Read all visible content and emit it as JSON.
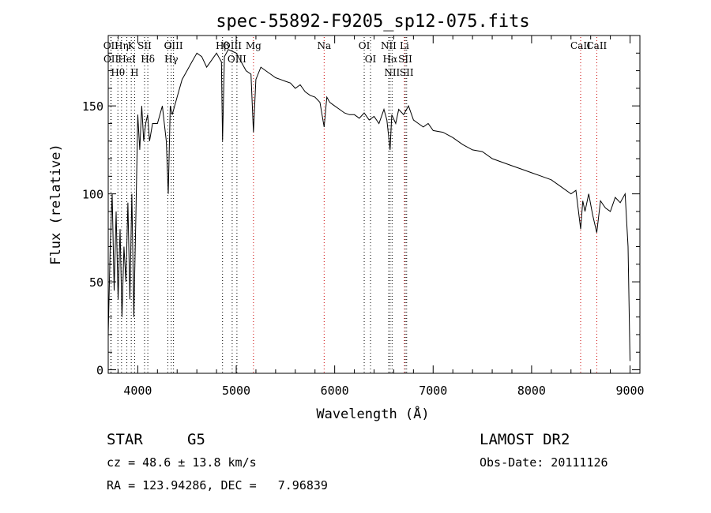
{
  "chart_data": {
    "type": "line",
    "title": "spec-55892-F9205_sp12-075.fits",
    "xlabel": "Wavelength (Å)",
    "ylabel": "Flux (relative)",
    "xlim": [
      3700,
      9100
    ],
    "ylim": [
      -2,
      190
    ],
    "x_ticks": [
      4000,
      5000,
      6000,
      7000,
      8000,
      9000
    ],
    "y_ticks": [
      0,
      50,
      100,
      150
    ],
    "grid": false,
    "series": [
      {
        "color": "#000000",
        "x": [
          3700,
          3720,
          3740,
          3760,
          3780,
          3800,
          3820,
          3840,
          3860,
          3880,
          3900,
          3920,
          3940,
          3960,
          3980,
          4000,
          4020,
          4040,
          4060,
          4080,
          4100,
          4120,
          4150,
          4200,
          4250,
          4290,
          4310,
          4330,
          4350,
          4400,
          4450,
          4500,
          4550,
          4600,
          4650,
          4700,
          4750,
          4800,
          4850,
          4861,
          4880,
          4920,
          5000,
          5050,
          5100,
          5150,
          5175,
          5200,
          5250,
          5300,
          5350,
          5400,
          5450,
          5500,
          5550,
          5600,
          5650,
          5700,
          5750,
          5800,
          5850,
          5893,
          5920,
          5950,
          6000,
          6050,
          6100,
          6150,
          6200,
          6250,
          6300,
          6350,
          6400,
          6450,
          6500,
          6530,
          6563,
          6580,
          6620,
          6650,
          6700,
          6750,
          6800,
          6850,
          6900,
          6950,
          7000,
          7100,
          7200,
          7300,
          7400,
          7500,
          7600,
          7700,
          7800,
          7900,
          8000,
          8100,
          8200,
          8300,
          8400,
          8450,
          8498,
          8520,
          8542,
          8580,
          8620,
          8662,
          8700,
          8750,
          8800,
          8850,
          8900,
          8950,
          8980,
          9000
        ],
        "y": [
          20,
          70,
          100,
          45,
          90,
          40,
          80,
          30,
          70,
          50,
          95,
          40,
          100,
          30,
          85,
          145,
          125,
          150,
          130,
          140,
          145,
          130,
          140,
          140,
          150,
          130,
          100,
          150,
          145,
          155,
          165,
          170,
          175,
          180,
          178,
          172,
          176,
          180,
          175,
          130,
          178,
          182,
          180,
          175,
          170,
          168,
          135,
          165,
          172,
          170,
          168,
          166,
          165,
          164,
          163,
          160,
          162,
          158,
          156,
          155,
          152,
          138,
          155,
          152,
          150,
          148,
          146,
          145,
          145,
          143,
          146,
          142,
          144,
          140,
          148,
          142,
          125,
          145,
          140,
          148,
          145,
          150,
          142,
          140,
          138,
          140,
          136,
          135,
          132,
          128,
          125,
          124,
          120,
          118,
          116,
          114,
          112,
          110,
          108,
          104,
          100,
          102,
          80,
          96,
          90,
          100,
          88,
          78,
          96,
          92,
          90,
          98,
          95,
          100,
          70,
          5
        ]
      }
    ],
    "line_markers": [
      {
        "label": "Hθ",
        "x": 3798,
        "color": "#000000"
      },
      {
        "label": "OII",
        "x": 3727,
        "color": "#000000"
      },
      {
        "label": "OII",
        "x": 3729,
        "color": "#000000"
      },
      {
        "label": "K",
        "x": 3934,
        "color": "#000000"
      },
      {
        "label": "HeI",
        "x": 3889,
        "color": "#000000"
      },
      {
        "label": "Hη",
        "x": 3835,
        "color": "#000000"
      },
      {
        "label": "Hδ",
        "x": 4102,
        "color": "#000000"
      },
      {
        "label": "SII",
        "x": 4069,
        "color": "#000000"
      },
      {
        "label": "H",
        "x": 3968,
        "color": "#000000"
      },
      {
        "label": "OIII",
        "x": 4363,
        "color": "#000000"
      },
      {
        "label": "Hγ",
        "x": 4340,
        "color": "#000000"
      },
      {
        "label": "G",
        "x": 4305,
        "color": "#000000"
      },
      {
        "label": "Hβ",
        "x": 4861,
        "color": "#000000"
      },
      {
        "label": "OIII",
        "x": 4959,
        "color": "#000000"
      },
      {
        "label": "OIII",
        "x": 5007,
        "color": "#000000"
      },
      {
        "label": "Mg",
        "x": 5175,
        "color": "#cc0000"
      },
      {
        "label": "Na",
        "x": 5893,
        "color": "#cc0000"
      },
      {
        "label": "OI",
        "x": 6300,
        "color": "#000000"
      },
      {
        "label": "OI",
        "x": 6364,
        "color": "#000000"
      },
      {
        "label": "Hα",
        "x": 6563,
        "color": "#000000"
      },
      {
        "label": "NII",
        "x": 6548,
        "color": "#000000"
      },
      {
        "label": "NII",
        "x": 6583,
        "color": "#000000"
      },
      {
        "label": "Li",
        "x": 6708,
        "color": "#cc0000"
      },
      {
        "label": "SII",
        "x": 6717,
        "color": "#000000"
      },
      {
        "label": "SII",
        "x": 6731,
        "color": "#000000"
      },
      {
        "label": "CaII",
        "x": 8498,
        "color": "#cc0000"
      },
      {
        "label": "CaII",
        "x": 8662,
        "color": "#cc0000"
      }
    ]
  },
  "info": {
    "class_label": "STAR",
    "subclass_label": "G5",
    "survey": "LAMOST DR2",
    "cz": "cz = 48.6 ± 13.8 km/s",
    "obs_date": "Obs-Date: 20111126",
    "coords": "RA = 123.94286, DEC =   7.96839"
  }
}
